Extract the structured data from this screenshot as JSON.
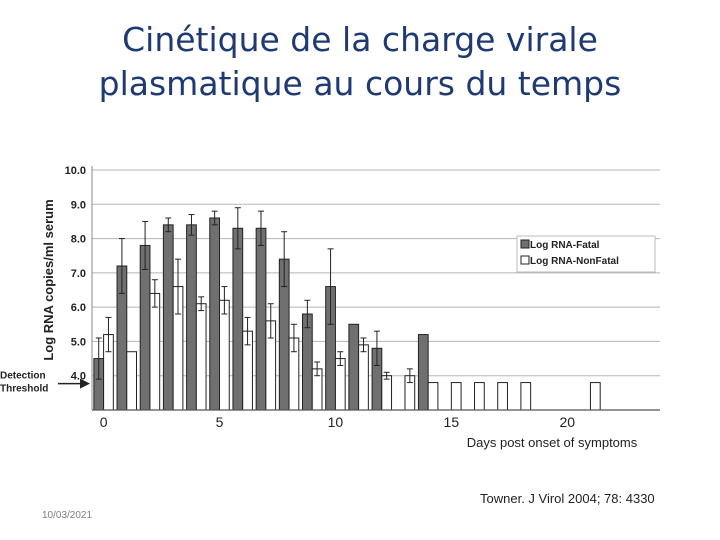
{
  "slide": {
    "title_line1": "Cinétique de la charge virale",
    "title_line2": "plasmatique au cours du temps",
    "date": "10/03/2021",
    "citation": "Towner. J Virol 2004; 78: 4330"
  },
  "chart_data": {
    "type": "bar",
    "ylabel": "Log RNA copies/ml serum",
    "xlabel": "Days post onset of symptoms",
    "ylim": [
      3.0,
      10.0
    ],
    "yticks": [
      "10.0",
      "9.0",
      "8.0",
      "7.0",
      "6.0",
      "5.0",
      "4.0"
    ],
    "ytick_values": [
      10,
      9,
      8,
      7,
      6,
      5,
      4
    ],
    "xlim": [
      -0.5,
      24
    ],
    "xticks": [
      "0",
      "5",
      "10",
      "15",
      "20"
    ],
    "xtick_values": [
      0,
      5,
      10,
      15,
      20
    ],
    "grid": true,
    "legend_position": "right",
    "threshold": {
      "label_line1": "Detection",
      "label_line2": "Threshold",
      "value": 3.8
    },
    "series": [
      {
        "name": "Log RNA-Fatal",
        "color": "#707070",
        "x": [
          0,
          1,
          2,
          3,
          4,
          5,
          6,
          7,
          8,
          9,
          10,
          11,
          12,
          14
        ],
        "values": [
          4.5,
          7.2,
          7.8,
          8.4,
          8.4,
          8.6,
          8.3,
          8.3,
          7.4,
          5.8,
          6.6,
          5.5,
          4.8,
          5.2
        ],
        "errors": [
          0.6,
          0.8,
          0.7,
          0.2,
          0.3,
          0.2,
          0.6,
          0.5,
          0.8,
          0.4,
          1.1,
          0.0,
          0.5,
          0.0
        ]
      },
      {
        "name": "Log RNA-NonFatal",
        "color": "#ffffff",
        "x": [
          0,
          1,
          2,
          3,
          4,
          5,
          6,
          7,
          8,
          9,
          10,
          11,
          12,
          13,
          14,
          15,
          16,
          17,
          18,
          21
        ],
        "values": [
          5.2,
          4.7,
          6.4,
          6.6,
          6.1,
          6.2,
          5.3,
          5.6,
          5.1,
          4.2,
          4.5,
          4.9,
          4.0,
          4.0,
          3.8,
          3.8,
          3.8,
          3.8,
          3.8,
          3.8
        ],
        "errors": [
          0.5,
          0.0,
          0.4,
          0.8,
          0.2,
          0.4,
          0.4,
          0.5,
          0.4,
          0.2,
          0.2,
          0.2,
          0.1,
          0.2,
          0.0,
          0.0,
          0.0,
          0.0,
          0.0,
          0.0
        ]
      }
    ]
  }
}
